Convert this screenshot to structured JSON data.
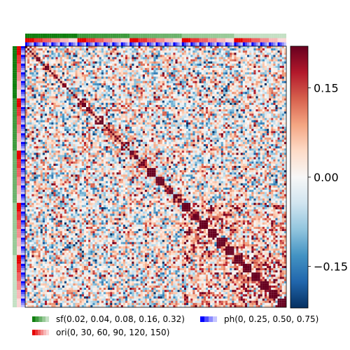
{
  "chart_data": {
    "type": "heatmap",
    "title": "",
    "xlabel": "",
    "ylabel": "",
    "n_stimuli": 120,
    "colormap": "RdBu_r",
    "color_range": [
      -0.22,
      0.22
    ],
    "colorbar": {
      "ticks": [
        0.15,
        0.0,
        -0.15
      ],
      "tick_labels": [
        "0.15",
        "0.00",
        "−0.15"
      ]
    },
    "factors": [
      {
        "name": "sf",
        "values": [
          0.02,
          0.04,
          0.08,
          0.16,
          0.32
        ],
        "colors": [
          "#0f7f0f",
          "#3d9a3d",
          "#6bb26b",
          "#98ca98",
          "#c4e0c4"
        ]
      },
      {
        "name": "ori",
        "values": [
          0,
          30,
          60,
          90,
          120,
          150
        ],
        "colors": [
          "#e60000",
          "#ec3333",
          "#f06060",
          "#f48d8d",
          "#f8b8b8",
          "#fbd8d8"
        ]
      },
      {
        "name": "ph",
        "values": [
          0,
          0.25,
          0.5,
          0.75
        ],
        "colors": [
          "#0000ff",
          "#4d4dff",
          "#8c8cff",
          "#c4c4ff"
        ]
      }
    ],
    "legend": {
      "placement": "bottom",
      "entries": [
        {
          "label": "sf(0.02, 0.04, 0.08, 0.16, 0.32)",
          "factor": "sf"
        },
        {
          "label": "ph(0, 0.25, 0.50, 0.75)",
          "factor": "ph"
        },
        {
          "label": "ori(0, 30, 60, 90, 120, 150)",
          "factor": "ori"
        }
      ]
    },
    "structure": "block similarity by orientation within spatial frequency; diagonal = 1; strongest correlations among high-sf stimuli"
  }
}
